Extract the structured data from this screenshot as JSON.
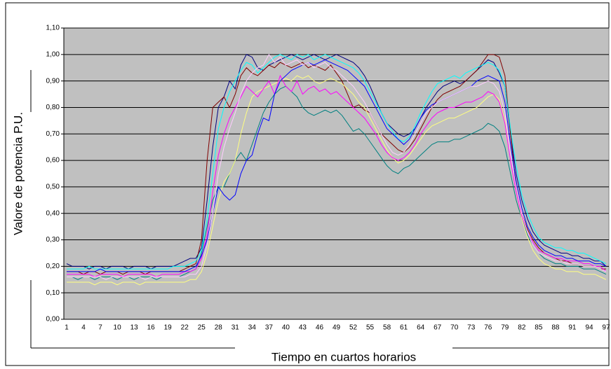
{
  "chart_data": {
    "type": "line",
    "y_label": "Valore de potencia P.U.",
    "x_label": "Tiempo en cuartos horarios",
    "grid": true,
    "background": "#c0c0c0",
    "ylim": [
      0,
      1.1
    ],
    "yticks": [
      {
        "value": 0,
        "label": "0,00"
      },
      {
        "value": 0.1,
        "label": "0,10"
      },
      {
        "value": 0.2,
        "label": "0,20"
      },
      {
        "value": 0.3,
        "label": "0,30"
      },
      {
        "value": 0.4,
        "label": "0,40"
      },
      {
        "value": 0.5,
        "label": "0,50"
      },
      {
        "value": 0.6,
        "label": "0,60"
      },
      {
        "value": 0.7,
        "label": "0,70"
      },
      {
        "value": 0.8,
        "label": "0,80"
      },
      {
        "value": 0.9,
        "label": "0,90"
      },
      {
        "value": 1.0,
        "label": "1,00"
      },
      {
        "value": 1.1,
        "label": "1,10"
      }
    ],
    "categories": [
      1,
      null,
      null,
      4,
      null,
      null,
      7,
      null,
      null,
      10,
      null,
      null,
      13,
      null,
      null,
      16,
      null,
      null,
      19,
      null,
      null,
      22,
      null,
      null,
      25,
      null,
      null,
      28,
      null,
      null,
      31,
      null,
      null,
      34,
      null,
      null,
      37,
      null,
      null,
      40,
      null,
      null,
      43,
      null,
      null,
      46,
      null,
      null,
      49,
      null,
      null,
      52,
      null,
      null,
      55,
      null,
      null,
      58,
      null,
      null,
      61,
      null,
      null,
      64,
      null,
      null,
      67,
      null,
      null,
      70,
      null,
      null,
      73,
      null,
      null,
      76,
      null,
      null,
      79,
      null,
      null,
      82,
      null,
      null,
      85,
      null,
      null,
      88,
      null,
      null,
      91,
      null,
      null,
      94,
      null,
      null,
      97
    ],
    "series": [
      {
        "color": "#000080",
        "values": [
          0.21,
          0.2,
          0.2,
          0.2,
          0.19,
          0.2,
          0.2,
          0.19,
          0.2,
          0.2,
          0.2,
          0.19,
          0.2,
          0.2,
          0.2,
          0.19,
          0.2,
          0.2,
          0.2,
          0.2,
          0.21,
          0.22,
          0.23,
          0.23,
          0.27,
          0.45,
          0.65,
          0.8,
          0.84,
          0.9,
          0.87,
          0.96,
          1.0,
          0.99,
          0.95,
          0.94,
          0.96,
          0.97,
          0.98,
          0.99,
          1.0,
          0.99,
          0.98,
          0.99,
          1.0,
          0.99,
          0.98,
          0.99,
          1.0,
          0.99,
          0.98,
          0.97,
          0.95,
          0.92,
          0.88,
          0.83,
          0.78,
          0.74,
          0.72,
          0.7,
          0.69,
          0.7,
          0.72,
          0.76,
          0.8,
          0.83,
          0.86,
          0.88,
          0.89,
          0.9,
          0.89,
          0.9,
          0.92,
          0.94,
          0.96,
          0.98,
          0.97,
          0.93,
          0.88,
          0.7,
          0.55,
          0.45,
          0.38,
          0.33,
          0.3,
          0.28,
          0.27,
          0.26,
          0.25,
          0.25,
          0.24,
          0.24,
          0.23,
          0.23,
          0.22,
          0.22,
          0.2
        ]
      },
      {
        "color": "#800000",
        "values": [
          0.18,
          0.18,
          0.18,
          0.17,
          0.18,
          0.18,
          0.17,
          0.18,
          0.18,
          0.18,
          0.17,
          0.18,
          0.18,
          0.18,
          0.17,
          0.18,
          0.18,
          0.18,
          0.18,
          0.18,
          0.18,
          0.19,
          0.2,
          0.21,
          0.3,
          0.6,
          0.8,
          0.82,
          0.84,
          0.8,
          0.85,
          0.92,
          0.95,
          0.93,
          0.92,
          0.94,
          0.96,
          0.95,
          0.97,
          0.96,
          0.95,
          0.96,
          0.97,
          0.95,
          0.96,
          0.95,
          0.94,
          0.96,
          0.93,
          0.9,
          0.85,
          0.8,
          0.81,
          0.79,
          0.78,
          0.74,
          0.7,
          0.68,
          0.66,
          0.64,
          0.63,
          0.65,
          0.68,
          0.72,
          0.76,
          0.8,
          0.83,
          0.85,
          0.86,
          0.87,
          0.88,
          0.9,
          0.92,
          0.94,
          0.97,
          1.0,
          1.0,
          0.99,
          0.92,
          0.7,
          0.5,
          0.4,
          0.34,
          0.3,
          0.27,
          0.25,
          0.24,
          0.23,
          0.22,
          0.22,
          0.21,
          0.21,
          0.2,
          0.2,
          0.2,
          0.19,
          0.19
        ]
      },
      {
        "color": "#008080",
        "values": [
          0.16,
          0.16,
          0.15,
          0.16,
          0.16,
          0.15,
          0.16,
          0.16,
          0.16,
          0.15,
          0.16,
          0.16,
          0.15,
          0.16,
          0.16,
          0.16,
          0.15,
          0.16,
          0.16,
          0.16,
          0.16,
          0.17,
          0.18,
          0.19,
          0.25,
          0.35,
          0.45,
          0.5,
          0.5,
          0.55,
          0.6,
          0.63,
          0.6,
          0.66,
          0.72,
          0.78,
          0.82,
          0.85,
          0.87,
          0.88,
          0.86,
          0.84,
          0.8,
          0.78,
          0.77,
          0.78,
          0.79,
          0.78,
          0.79,
          0.77,
          0.74,
          0.71,
          0.72,
          0.7,
          0.67,
          0.64,
          0.61,
          0.58,
          0.56,
          0.55,
          0.57,
          0.58,
          0.6,
          0.62,
          0.64,
          0.66,
          0.67,
          0.67,
          0.67,
          0.68,
          0.68,
          0.69,
          0.7,
          0.71,
          0.72,
          0.74,
          0.73,
          0.71,
          0.65,
          0.55,
          0.45,
          0.38,
          0.32,
          0.28,
          0.25,
          0.23,
          0.22,
          0.21,
          0.21,
          0.2,
          0.2,
          0.2,
          0.19,
          0.19,
          0.19,
          0.18,
          0.17
        ]
      },
      {
        "color": "#00ffff",
        "values": [
          0.19,
          0.19,
          0.19,
          0.19,
          0.2,
          0.19,
          0.19,
          0.19,
          0.19,
          0.19,
          0.19,
          0.19,
          0.19,
          0.19,
          0.19,
          0.19,
          0.19,
          0.19,
          0.19,
          0.2,
          0.2,
          0.2,
          0.21,
          0.22,
          0.26,
          0.38,
          0.55,
          0.72,
          0.8,
          0.86,
          0.9,
          0.94,
          0.97,
          0.96,
          0.93,
          0.95,
          0.97,
          0.99,
          1.0,
          0.99,
          0.98,
          1.0,
          0.99,
          1.0,
          0.98,
          0.99,
          1.0,
          0.99,
          0.98,
          0.97,
          0.96,
          0.95,
          0.93,
          0.9,
          0.86,
          0.82,
          0.78,
          0.74,
          0.71,
          0.68,
          0.67,
          0.69,
          0.73,
          0.78,
          0.82,
          0.86,
          0.89,
          0.9,
          0.91,
          0.92,
          0.91,
          0.93,
          0.94,
          0.95,
          0.96,
          0.97,
          0.96,
          0.94,
          0.88,
          0.72,
          0.58,
          0.47,
          0.4,
          0.35,
          0.31,
          0.29,
          0.28,
          0.27,
          0.27,
          0.26,
          0.26,
          0.25,
          0.25,
          0.24,
          0.23,
          0.22,
          0.21
        ]
      },
      {
        "color": "#ffff80",
        "values": [
          0.14,
          0.14,
          0.14,
          0.14,
          0.14,
          0.13,
          0.14,
          0.14,
          0.14,
          0.13,
          0.14,
          0.14,
          0.14,
          0.13,
          0.14,
          0.14,
          0.14,
          0.14,
          0.14,
          0.14,
          0.14,
          0.14,
          0.15,
          0.15,
          0.18,
          0.25,
          0.35,
          0.45,
          0.52,
          0.55,
          0.6,
          0.7,
          0.78,
          0.84,
          0.86,
          0.87,
          0.88,
          0.89,
          0.9,
          0.91,
          0.9,
          0.92,
          0.91,
          0.92,
          0.9,
          0.89,
          0.9,
          0.91,
          0.9,
          0.89,
          0.87,
          0.85,
          0.82,
          0.8,
          0.76,
          0.72,
          0.68,
          0.64,
          0.61,
          0.59,
          0.6,
          0.62,
          0.65,
          0.68,
          0.71,
          0.73,
          0.74,
          0.75,
          0.76,
          0.76,
          0.77,
          0.78,
          0.79,
          0.8,
          0.82,
          0.84,
          0.85,
          0.83,
          0.75,
          0.6,
          0.48,
          0.38,
          0.31,
          0.26,
          0.23,
          0.21,
          0.2,
          0.19,
          0.19,
          0.18,
          0.18,
          0.18,
          0.17,
          0.17,
          0.17,
          0.16,
          0.15
        ]
      },
      {
        "color": "#ff00ff",
        "values": [
          0.17,
          0.17,
          0.17,
          0.17,
          0.17,
          0.16,
          0.17,
          0.17,
          0.17,
          0.17,
          0.16,
          0.17,
          0.17,
          0.17,
          0.17,
          0.17,
          0.16,
          0.17,
          0.17,
          0.17,
          0.17,
          0.18,
          0.18,
          0.19,
          0.23,
          0.32,
          0.48,
          0.62,
          0.7,
          0.76,
          0.8,
          0.84,
          0.88,
          0.86,
          0.84,
          0.87,
          0.9,
          0.85,
          0.92,
          0.88,
          0.86,
          0.9,
          0.85,
          0.87,
          0.88,
          0.86,
          0.87,
          0.85,
          0.86,
          0.84,
          0.82,
          0.8,
          0.78,
          0.76,
          0.73,
          0.7,
          0.66,
          0.63,
          0.61,
          0.6,
          0.61,
          0.63,
          0.66,
          0.7,
          0.73,
          0.76,
          0.78,
          0.79,
          0.8,
          0.8,
          0.81,
          0.82,
          0.82,
          0.83,
          0.84,
          0.86,
          0.85,
          0.82,
          0.74,
          0.6,
          0.48,
          0.39,
          0.33,
          0.29,
          0.26,
          0.25,
          0.24,
          0.23,
          0.23,
          0.22,
          0.22,
          0.22,
          0.21,
          0.21,
          0.2,
          0.2,
          0.18
        ]
      },
      {
        "color": "#0000ff",
        "values": [
          0.18,
          0.18,
          0.18,
          0.18,
          0.18,
          0.18,
          0.19,
          0.18,
          0.18,
          0.18,
          0.18,
          0.18,
          0.18,
          0.18,
          0.18,
          0.18,
          0.18,
          0.18,
          0.18,
          0.18,
          0.18,
          0.18,
          0.19,
          0.2,
          0.24,
          0.3,
          0.4,
          0.5,
          0.47,
          0.45,
          0.47,
          0.55,
          0.6,
          0.62,
          0.7,
          0.76,
          0.75,
          0.85,
          0.9,
          0.92,
          0.94,
          0.95,
          0.96,
          0.97,
          0.96,
          0.97,
          0.98,
          0.97,
          0.96,
          0.95,
          0.94,
          0.92,
          0.9,
          0.88,
          0.84,
          0.8,
          0.76,
          0.72,
          0.7,
          0.68,
          0.66,
          0.68,
          0.72,
          0.76,
          0.79,
          0.81,
          0.82,
          0.83,
          0.84,
          0.85,
          0.86,
          0.87,
          0.88,
          0.9,
          0.91,
          0.92,
          0.91,
          0.9,
          0.82,
          0.66,
          0.52,
          0.42,
          0.35,
          0.31,
          0.28,
          0.26,
          0.25,
          0.24,
          0.24,
          0.23,
          0.23,
          0.22,
          0.22,
          0.22,
          0.21,
          0.21,
          0.2
        ]
      },
      {
        "color": "#ffccff",
        "values": [
          0.16,
          0.16,
          0.16,
          0.16,
          0.16,
          0.16,
          0.16,
          0.15,
          0.16,
          0.16,
          0.16,
          0.16,
          0.16,
          0.16,
          0.15,
          0.16,
          0.16,
          0.16,
          0.16,
          0.16,
          0.16,
          0.16,
          0.17,
          0.17,
          0.2,
          0.28,
          0.4,
          0.55,
          0.65,
          0.72,
          0.78,
          0.85,
          0.9,
          0.93,
          0.95,
          0.96,
          1.0,
          0.97,
          0.99,
          0.96,
          0.97,
          0.98,
          0.96,
          0.97,
          0.95,
          0.96,
          0.97,
          0.95,
          0.94,
          0.92,
          0.9,
          0.88,
          0.85,
          0.82,
          0.78,
          0.74,
          0.7,
          0.66,
          0.63,
          0.62,
          0.63,
          0.66,
          0.7,
          0.74,
          0.78,
          0.8,
          0.82,
          0.83,
          0.84,
          0.85,
          0.86,
          0.87,
          0.88,
          0.88,
          0.89,
          0.9,
          0.89,
          0.86,
          0.78,
          0.62,
          0.5,
          0.4,
          0.33,
          0.28,
          0.25,
          0.24,
          0.23,
          0.22,
          0.22,
          0.21,
          0.21,
          0.21,
          0.2,
          0.2,
          0.2,
          0.19,
          0.18
        ]
      }
    ]
  }
}
